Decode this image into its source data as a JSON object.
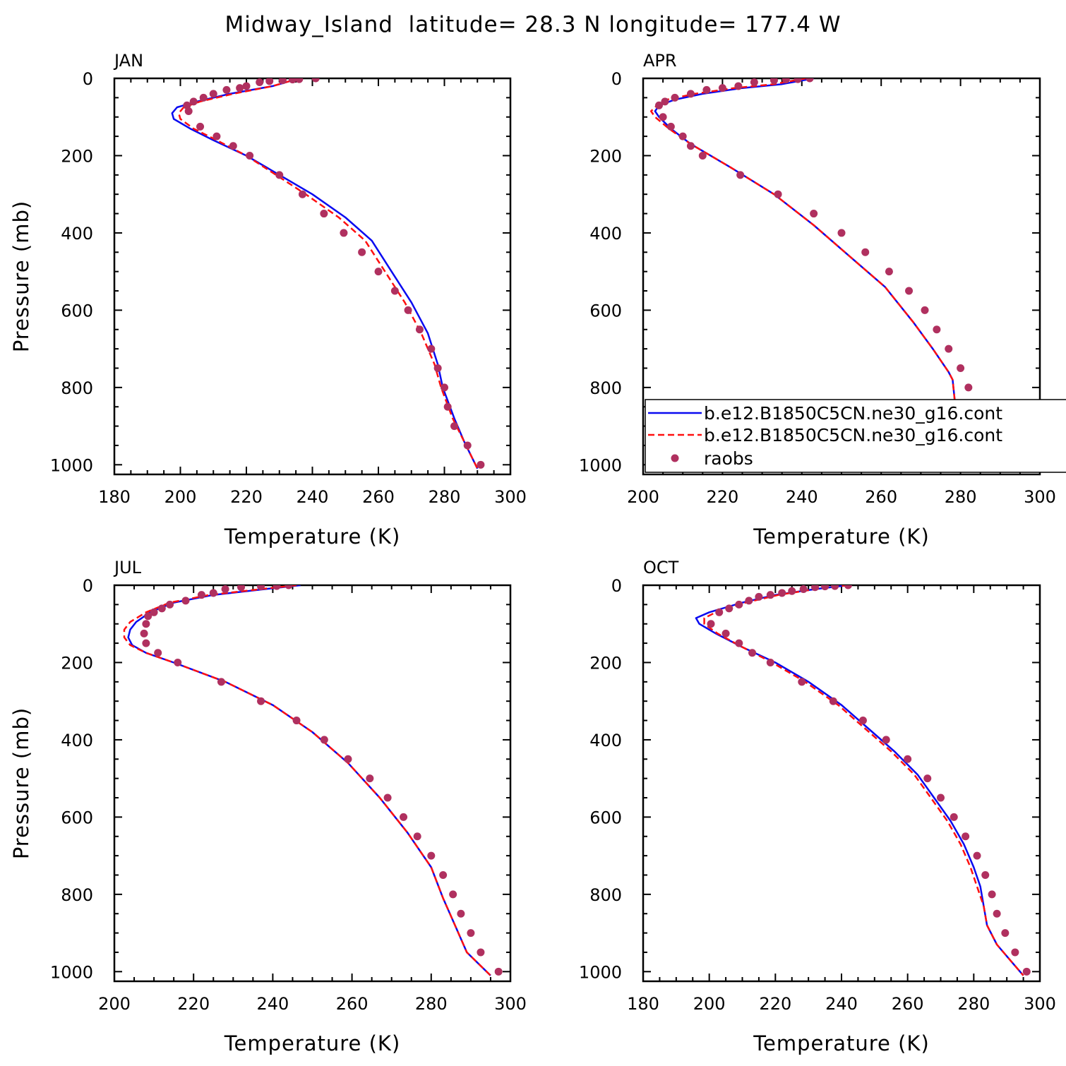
{
  "title": "Midway_Island  latitude= 28.3 N longitude= 177.4 W",
  "colors": {
    "model1": "#0a0af0",
    "model2": "#ff1010",
    "raobs": "#b0305f",
    "axis": "#000000"
  },
  "legend": {
    "placement": "bottom of APR panel, extending past right edge",
    "entries": [
      {
        "label": "b.e12.B1850C5CN.ne30_g16.cont",
        "style": "solid",
        "color_key": "model1"
      },
      {
        "label": "b.e12.B1850C5CN.ne30_g16.cont",
        "style": "dashed",
        "color_key": "model2"
      },
      {
        "label": "raobs",
        "style": "dots",
        "color_key": "raobs"
      }
    ]
  },
  "chart_data": [
    {
      "type": "line",
      "panel": "JAN",
      "xlabel": "Temperature (K)",
      "ylabel": "Pressure (mb)",
      "xlim": [
        180,
        300
      ],
      "ylim": [
        0,
        1025
      ],
      "y_inverted": true,
      "xticks": [
        180,
        200,
        220,
        240,
        260,
        280,
        300
      ],
      "yticks": [
        0,
        200,
        400,
        600,
        800,
        1000
      ],
      "grid": false,
      "series": [
        {
          "color_key": "model1",
          "style": "solid",
          "x": [
            236,
            228,
            215,
            205,
            199,
            197.5,
            198,
            203,
            210,
            220,
            230,
            240,
            250,
            258,
            264,
            270,
            275,
            278,
            279.5,
            283,
            286,
            290
          ],
          "y": [
            0,
            20,
            40,
            60,
            75,
            90,
            105,
            130,
            160,
            200,
            250,
            300,
            360,
            420,
            500,
            580,
            660,
            740,
            800,
            880,
            940,
            1010
          ]
        },
        {
          "color_key": "model2",
          "style": "dashed",
          "x": [
            236,
            228,
            216,
            206,
            201,
            199.5,
            200,
            204,
            211,
            220,
            229,
            238,
            248,
            256,
            262,
            268,
            273,
            277,
            279,
            282.5,
            286,
            290
          ],
          "y": [
            0,
            20,
            40,
            60,
            75,
            90,
            105,
            130,
            160,
            200,
            250,
            300,
            360,
            420,
            500,
            580,
            660,
            740,
            800,
            880,
            940,
            1010
          ]
        },
        {
          "color_key": "raobs",
          "style": "dots",
          "x": [
            241,
            236,
            234,
            231,
            227,
            224,
            220,
            218,
            214,
            210,
            207,
            204,
            202,
            202.5,
            206,
            211,
            216,
            221,
            230,
            237,
            243.5,
            249.5,
            255,
            260,
            265,
            269,
            272.5,
            276,
            278,
            280,
            281,
            283,
            287,
            291
          ],
          "y": [
            0,
            2,
            3,
            5,
            7,
            10,
            20,
            25,
            30,
            40,
            50,
            60,
            70,
            85,
            125,
            150,
            175,
            200,
            250,
            300,
            350,
            400,
            450,
            500,
            550,
            600,
            650,
            700,
            750,
            800,
            850,
            900,
            950,
            1000
          ]
        }
      ]
    },
    {
      "type": "line",
      "panel": "APR",
      "xlabel": "Temperature (K)",
      "ylabel": "",
      "xlim": [
        200,
        300
      ],
      "ylim": [
        0,
        1025
      ],
      "y_inverted": true,
      "xticks": [
        200,
        220,
        240,
        260,
        280,
        300
      ],
      "yticks": [
        0,
        200,
        400,
        600,
        800,
        1000
      ],
      "grid": false,
      "series": [
        {
          "color_key": "model1",
          "style": "solid",
          "x": [
            243,
            235,
            225,
            215,
            208,
            204,
            203,
            204,
            207,
            212,
            222,
            233,
            243,
            252,
            261,
            268,
            273,
            277,
            278,
            278.5,
            281,
            285,
            289
          ],
          "y": [
            0,
            15,
            25,
            40,
            55,
            70,
            85,
            100,
            130,
            170,
            230,
            300,
            380,
            460,
            540,
            630,
            700,
            760,
            780,
            830,
            900,
            960,
            1010
          ]
        },
        {
          "color_key": "model2",
          "style": "dashed",
          "x": [
            241,
            233,
            223,
            213,
            206,
            203.5,
            202,
            203,
            206.5,
            212,
            222,
            233,
            243,
            252,
            261,
            268,
            273,
            277,
            278,
            278.5,
            281,
            285,
            289
          ],
          "y": [
            0,
            15,
            25,
            40,
            55,
            70,
            85,
            100,
            130,
            170,
            230,
            300,
            380,
            460,
            540,
            630,
            700,
            760,
            780,
            830,
            900,
            960,
            1010
          ]
        },
        {
          "color_key": "raobs",
          "style": "dots",
          "x": [
            242,
            239,
            236,
            233,
            228,
            224,
            220,
            216,
            212,
            208,
            205.5,
            204,
            205,
            207,
            210,
            212,
            215,
            224.5,
            234,
            243,
            250,
            256,
            262,
            267,
            271,
            274,
            277,
            280,
            282,
            283,
            284,
            287,
            291
          ],
          "y": [
            0,
            2,
            3,
            5,
            10,
            20,
            25,
            30,
            40,
            50,
            60,
            70,
            100,
            125,
            150,
            175,
            200,
            250,
            300,
            350,
            400,
            450,
            500,
            550,
            600,
            650,
            700,
            750,
            800,
            850,
            900,
            950,
            1000
          ]
        }
      ]
    },
    {
      "type": "line",
      "panel": "JUL",
      "xlabel": "Temperature (K)",
      "ylabel": "Pressure (mb)",
      "xlim": [
        200,
        300
      ],
      "ylim": [
        0,
        1025
      ],
      "y_inverted": true,
      "xticks": [
        200,
        220,
        240,
        260,
        280,
        300
      ],
      "yticks": [
        0,
        200,
        400,
        600,
        800,
        1000
      ],
      "grid": false,
      "series": [
        {
          "color_key": "model1",
          "style": "solid",
          "x": [
            247,
            238,
            225,
            215,
            209,
            205.5,
            204,
            203.5,
            204.5,
            208,
            215,
            228,
            240,
            250,
            259,
            267,
            274,
            280,
            283,
            286,
            289,
            295
          ],
          "y": [
            0,
            10,
            25,
            45,
            70,
            95,
            115,
            135,
            155,
            175,
            200,
            250,
            310,
            380,
            460,
            550,
            640,
            730,
            810,
            880,
            950,
            1010
          ]
        },
        {
          "color_key": "model2",
          "style": "dashed",
          "x": [
            246,
            237,
            224,
            214,
            208,
            204,
            202.5,
            202.5,
            204,
            208,
            215,
            228,
            240,
            250,
            259,
            267,
            274,
            280,
            283,
            286,
            289,
            295
          ],
          "y": [
            0,
            10,
            25,
            45,
            70,
            95,
            115,
            135,
            155,
            175,
            200,
            250,
            310,
            380,
            460,
            550,
            640,
            730,
            810,
            880,
            950,
            1010
          ]
        },
        {
          "color_key": "raobs",
          "style": "dots",
          "x": [
            244,
            241,
            237,
            232,
            228,
            225,
            222,
            218,
            214,
            212,
            210,
            208.5,
            208,
            207.5,
            208,
            211,
            216,
            227,
            237,
            246,
            253,
            259,
            264.5,
            269,
            273,
            276.5,
            280,
            283,
            285.5,
            287.5,
            290,
            292.5,
            297
          ],
          "y": [
            0,
            2,
            3,
            5,
            10,
            20,
            25,
            40,
            50,
            60,
            70,
            80,
            100,
            125,
            150,
            175,
            200,
            250,
            300,
            350,
            400,
            450,
            500,
            550,
            600,
            650,
            700,
            750,
            800,
            850,
            900,
            950,
            1000
          ]
        }
      ]
    },
    {
      "type": "line",
      "panel": "OCT",
      "xlabel": "Temperature (K)",
      "ylabel": "",
      "xlim": [
        180,
        300
      ],
      "ylim": [
        0,
        1025
      ],
      "y_inverted": true,
      "xticks": [
        180,
        200,
        220,
        240,
        260,
        280,
        300
      ],
      "yticks": [
        0,
        200,
        400,
        600,
        800,
        1000
      ],
      "grid": false,
      "series": [
        {
          "color_key": "model1",
          "style": "solid",
          "x": [
            242,
            232,
            220,
            210,
            200,
            196,
            197,
            202,
            210,
            220,
            230,
            240,
            248,
            256,
            263,
            268,
            273,
            277,
            280,
            282,
            283,
            284,
            287,
            291,
            295
          ],
          "y": [
            0,
            10,
            25,
            45,
            70,
            85,
            100,
            125,
            160,
            200,
            250,
            310,
            370,
            430,
            490,
            550,
            610,
            670,
            730,
            780,
            830,
            880,
            930,
            970,
            1010
          ]
        },
        {
          "color_key": "model2",
          "style": "dashed",
          "x": [
            242,
            232,
            221,
            211,
            202,
            198.5,
            198.5,
            202.5,
            210,
            219,
            229,
            239,
            247,
            255,
            262,
            267,
            272,
            276,
            279,
            281,
            283,
            284,
            287,
            291,
            295
          ],
          "y": [
            0,
            10,
            25,
            45,
            70,
            85,
            100,
            125,
            160,
            200,
            250,
            310,
            370,
            430,
            490,
            550,
            610,
            670,
            730,
            780,
            830,
            880,
            930,
            970,
            1010
          ]
        },
        {
          "color_key": "raobs",
          "style": "dots",
          "x": [
            242,
            238,
            235,
            232,
            228.5,
            225,
            222,
            218.5,
            215,
            212,
            209,
            206,
            203,
            200.5,
            205,
            209,
            213,
            218.5,
            228,
            237.5,
            246.5,
            253.5,
            260,
            266,
            270,
            274,
            277.5,
            281,
            283.5,
            285.5,
            287,
            289.5,
            292.5,
            296
          ],
          "y": [
            0,
            2,
            3,
            5,
            10,
            15,
            20,
            25,
            30,
            40,
            50,
            60,
            70,
            100,
            125,
            150,
            175,
            200,
            250,
            300,
            350,
            400,
            450,
            500,
            550,
            600,
            650,
            700,
            750,
            800,
            850,
            900,
            950,
            1000
          ]
        }
      ]
    }
  ]
}
